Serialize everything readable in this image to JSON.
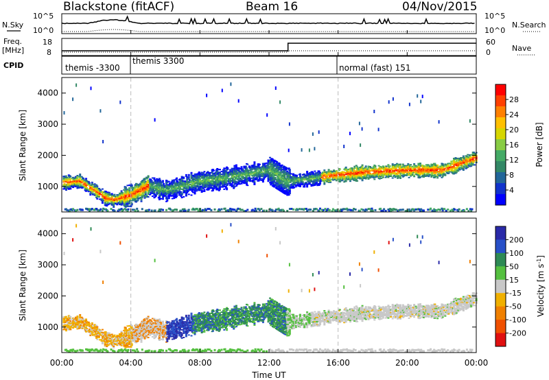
{
  "header": {
    "radar": "Blackstone (fitACF)",
    "beam": "Beam 16",
    "date": "04/Nov/2015"
  },
  "noise_panel": {
    "left_label": "N.Sky",
    "right_label": "N.Search",
    "tick_top_left": "10^5",
    "tick_bottom_left": "10^0",
    "tick_top_right": "10^5",
    "tick_bottom_right": "10^0"
  },
  "freq_panel": {
    "left_label_1": "Freq.",
    "left_label_2": "[MHz]",
    "right_label": "Nave",
    "left_ticks": [
      "18",
      "8"
    ],
    "right_ticks": [
      "60",
      "0"
    ]
  },
  "cpid_panel": {
    "label": "CPID",
    "modes": [
      "themis -3300",
      "themis 3300",
      "normal (fast) 151"
    ]
  },
  "axes": {
    "ylabel": "Slant Range [km]",
    "xlabel": "Time UT",
    "yticks": [
      "4000",
      "3000",
      "2000",
      "1000"
    ],
    "xticks": [
      "00:00",
      "04:00",
      "08:00",
      "12:00",
      "16:00",
      "20:00",
      "00:00"
    ]
  },
  "power_colorbar": {
    "label": "Power [dB]",
    "ticks": [
      "28",
      "24",
      "20",
      "16",
      "12",
      "8",
      "4"
    ],
    "colors": [
      "#ff0000",
      "#ff4000",
      "#ff8000",
      "#ffc000",
      "#d6d600",
      "#88cc44",
      "#44aa66",
      "#338866",
      "#226699",
      "#1133cc",
      "#0000ff"
    ]
  },
  "velocity_colorbar": {
    "label": "Velocity [m s",
    "label_sup": "-1",
    "label_end": "]",
    "ticks": [
      "200",
      "100",
      "50",
      "15",
      "-15",
      "-50",
      "-100",
      "-200"
    ],
    "colors": [
      "#2a2aa8",
      "#2850c8",
      "#2e8a55",
      "#55c040",
      "#c8c8c8",
      "#f0b000",
      "#f08000",
      "#f05000",
      "#e01010"
    ]
  },
  "chart_data": {
    "type": "heatmap",
    "x_range_hours": [
      0,
      24
    ],
    "y_range_km": [
      180,
      4500
    ],
    "grid": false,
    "vertical_mode_lines_hours": [
      4,
      16
    ],
    "power_band": [
      [
        0,
        1100
      ],
      [
        1,
        1150
      ],
      [
        2,
        800
      ],
      [
        2.5,
        600
      ],
      [
        3,
        550
      ],
      [
        4,
        700
      ],
      [
        5,
        1000
      ],
      [
        6,
        850
      ],
      [
        7,
        1000
      ],
      [
        8,
        1150
      ],
      [
        9,
        1200
      ],
      [
        10,
        1300
      ],
      [
        11,
        1400
      ],
      [
        12,
        1500
      ],
      [
        13,
        1150
      ],
      [
        14,
        1200
      ],
      [
        16,
        1350
      ],
      [
        18,
        1450
      ],
      [
        20,
        1500
      ],
      [
        21,
        1500
      ],
      [
        22,
        1500
      ],
      [
        23,
        1700
      ],
      [
        24,
        1900
      ]
    ]
  }
}
